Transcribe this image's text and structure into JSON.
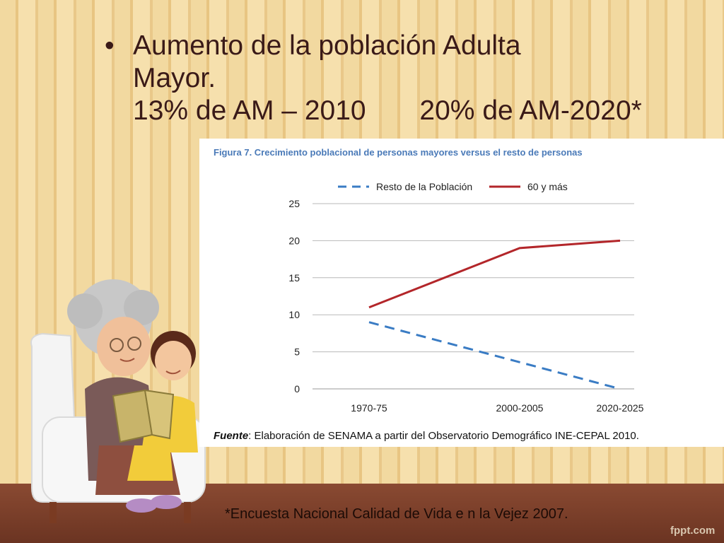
{
  "slide": {
    "bullet_symbol": "•",
    "bullet_lines": [
      "Aumento de la población Adulta",
      "Mayor.",
      "13% de AM – 2010       20% de AM-2020*"
    ],
    "footnote": "*Encuesta Nacional Calidad de Vida e n la Vejez 2007.",
    "watermark": "fppt.com"
  },
  "figure": {
    "title": "Figura 7. Crecimiento poblacional de personas mayores versus el resto de personas",
    "source_label": "Fuente",
    "source_text": ": Elaboración de SENAMA a partir del Observatorio Demográfico INE-CEPAL 2010."
  },
  "colors": {
    "series_resto": "#3a7cc4",
    "series_60": "#b3262a",
    "grid": "#b8b8b8",
    "title": "#4a7ab8"
  },
  "chart_data": {
    "type": "line",
    "title": "Figura 7. Crecimiento poblacional de personas mayores versus el resto de personas",
    "categories": [
      "1970-75",
      "2000-2005",
      "2020-2025"
    ],
    "x_positions": [
      1972.5,
      2002.5,
      2022.5
    ],
    "series": [
      {
        "name": "Resto de la Población",
        "style": "dashed",
        "x": [
          1972.5,
          2022.5
        ],
        "values": [
          9,
          0
        ]
      },
      {
        "name": "60 y más",
        "style": "solid",
        "x": [
          1972.5,
          2002.5,
          2022.5
        ],
        "values": [
          11,
          19,
          20
        ]
      }
    ],
    "ylim": [
      0,
      25
    ],
    "yticks": [
      0,
      5,
      10,
      15,
      20,
      25
    ],
    "grid": true,
    "legend_position": "top"
  }
}
